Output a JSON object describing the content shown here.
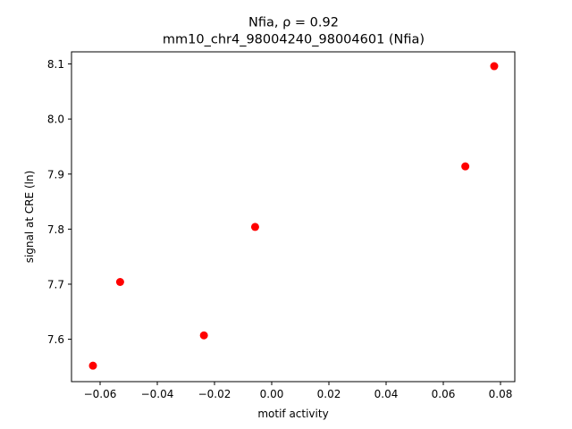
{
  "chart_data": {
    "type": "scatter",
    "title_line1": "Nfia, ρ = 0.92",
    "title_line2": "mm10_chr4_98004240_98004601 (Nfia)",
    "xlabel": "motif activity",
    "ylabel": "signal at CRE (ln)",
    "xlim": [
      -0.07,
      0.085
    ],
    "ylim": [
      7.523,
      8.122
    ],
    "xticks": [
      -0.06,
      -0.04,
      -0.02,
      0.0,
      0.02,
      0.04,
      0.06,
      0.08
    ],
    "xtick_labels": [
      "−0.06",
      "−0.04",
      "−0.02",
      "0.00",
      "0.02",
      "0.04",
      "0.06",
      "0.08"
    ],
    "yticks": [
      7.6,
      7.7,
      7.8,
      7.9,
      8.0,
      8.1
    ],
    "ytick_labels": [
      "7.6",
      "7.7",
      "7.8",
      "7.9",
      "8.0",
      "8.1"
    ],
    "point_color": "#ff0000",
    "points": [
      {
        "x": -0.0625,
        "y": 7.552
      },
      {
        "x": -0.053,
        "y": 7.704
      },
      {
        "x": -0.0237,
        "y": 7.607
      },
      {
        "x": -0.0058,
        "y": 7.804
      },
      {
        "x": 0.0677,
        "y": 7.914
      },
      {
        "x": 0.0778,
        "y": 8.096
      }
    ]
  }
}
